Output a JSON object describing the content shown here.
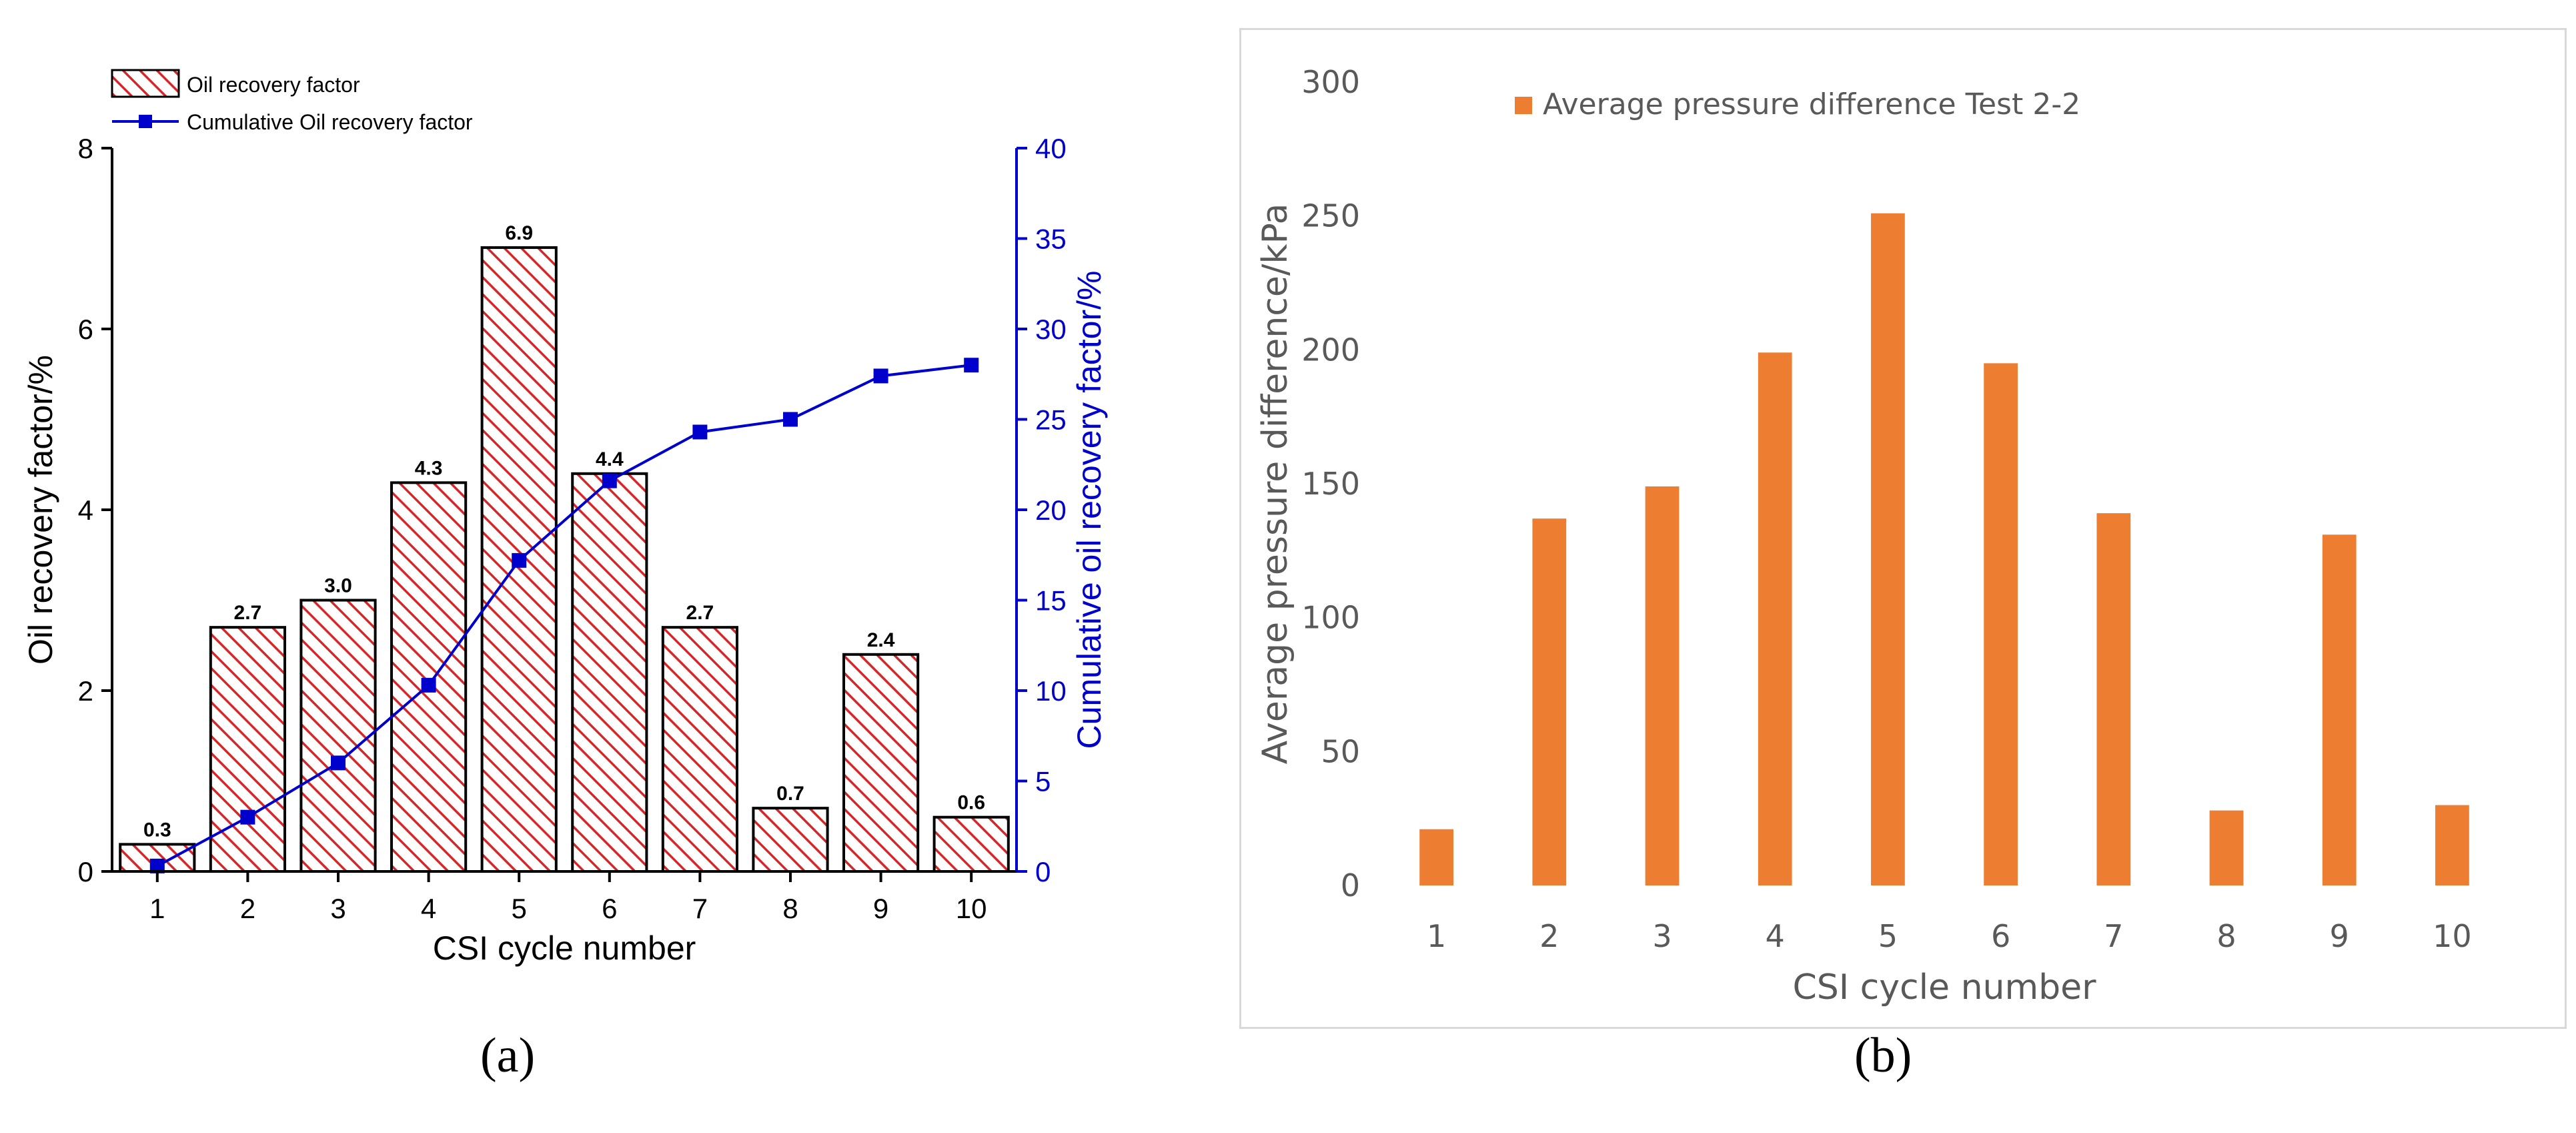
{
  "figure": {
    "label_a": "(a)",
    "label_b": "(b)"
  },
  "chart_data": [
    {
      "type": "bar",
      "bar_style": "red-diagonal-hatch",
      "categories": [
        "1",
        "2",
        "3",
        "4",
        "5",
        "6",
        "7",
        "8",
        "9",
        "10"
      ],
      "series": [
        {
          "name": "Oil recovery factor",
          "axis": "left",
          "values": [
            0.3,
            2.7,
            3.0,
            4.3,
            6.9,
            4.4,
            2.7,
            0.7,
            2.4,
            0.6
          ],
          "labels": [
            "0.3",
            "2.7",
            "3.0",
            "4.3",
            "6.9",
            "4.4",
            "2.7",
            "0.7",
            "2.4",
            "0.6"
          ],
          "color": "#d62728"
        },
        {
          "name": "Cumulative Oil recovery factor",
          "axis": "right",
          "type": "line",
          "values": [
            0.3,
            3.0,
            6.0,
            10.3,
            17.2,
            21.6,
            24.3,
            25.0,
            27.4,
            28.0
          ],
          "color": "#0000cc"
        }
      ],
      "xlabel": "CSI cycle number",
      "ylabel": "Oil recovery factor/%",
      "y2label": "Cumulative oil recovery factor/%",
      "ylim": [
        0,
        8
      ],
      "y2lim": [
        0,
        40
      ],
      "yticks": [
        "0",
        "2",
        "4",
        "6",
        "8"
      ],
      "y2ticks": [
        "0",
        "5",
        "10",
        "15",
        "20",
        "25",
        "30",
        "35",
        "40"
      ],
      "legend": "top-left",
      "grid": false
    },
    {
      "type": "bar",
      "categories": [
        "1",
        "2",
        "3",
        "4",
        "5",
        "6",
        "7",
        "8",
        "9",
        "10"
      ],
      "series": [
        {
          "name": "Average pressure difference Test 2-2",
          "values": [
            21,
            137,
            149,
            199,
            251,
            195,
            139,
            28,
            131,
            30
          ],
          "color": "#ed7d31"
        }
      ],
      "xlabel": "CSI cycle number",
      "ylabel": "Average pressure difference/kPa",
      "ylim": [
        0,
        300
      ],
      "yticks": [
        "0",
        "50",
        "100",
        "150",
        "200",
        "250",
        "300"
      ],
      "legend": "top-left",
      "grid": false
    }
  ]
}
